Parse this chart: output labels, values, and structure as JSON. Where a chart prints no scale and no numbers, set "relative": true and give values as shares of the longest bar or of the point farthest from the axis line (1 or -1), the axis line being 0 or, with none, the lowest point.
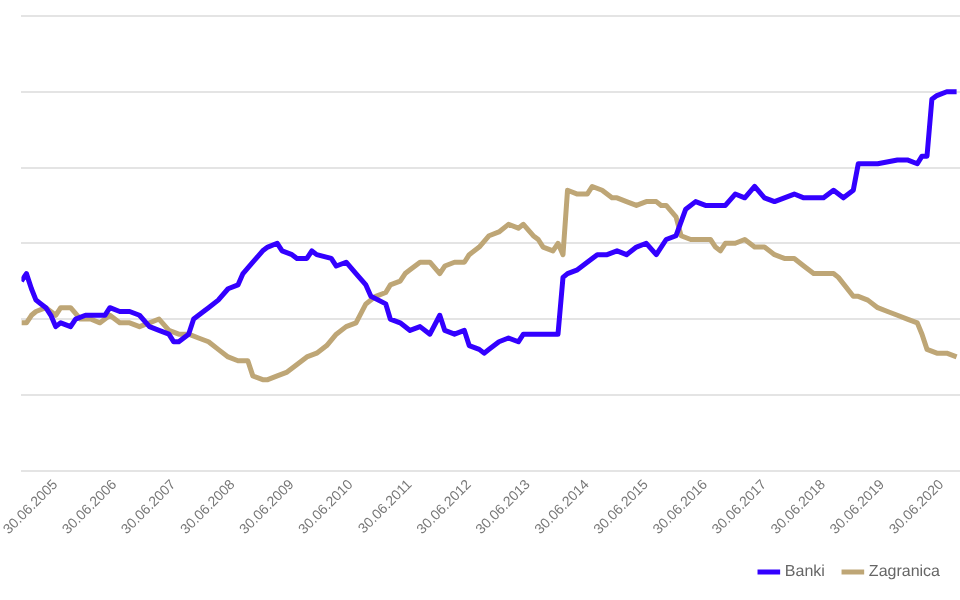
{
  "chart_data": {
    "type": "line",
    "relative": true,
    "grid": "y",
    "legend": "bottom",
    "marker": "none",
    "line_style": "solid",
    "xlim": [
      "2004-12-01",
      "2020-10-22"
    ],
    "xticks": [
      {
        "value": "2005-06-30",
        "label": "30.06.2005"
      },
      {
        "value": "2006-06-30",
        "label": "30.06.2006"
      },
      {
        "value": "2007-06-30",
        "label": "30.06.2007"
      },
      {
        "value": "2008-06-30",
        "label": "30.06.2008"
      },
      {
        "value": "2009-06-30",
        "label": "30.06.2009"
      },
      {
        "value": "2010-06-30",
        "label": "30.06.2010"
      },
      {
        "value": "2011-06-30",
        "label": "30.06.2011"
      },
      {
        "value": "2012-06-30",
        "label": "30.06.2012"
      },
      {
        "value": "2013-06-30",
        "label": "30.06.2013"
      },
      {
        "value": "2014-06-30",
        "label": "30.06.2014"
      },
      {
        "value": "2015-06-30",
        "label": "30.06.2015"
      },
      {
        "value": "2016-06-30",
        "label": "30.06.2016"
      },
      {
        "value": "2017-06-30",
        "label": "30.06.2017"
      },
      {
        "value": "2018-06-30",
        "label": "30.06.2018"
      },
      {
        "value": "2019-06-30",
        "label": "30.06.2019"
      },
      {
        "value": "2020-06-30",
        "label": "30.06.2020"
      }
    ],
    "series": [
      {
        "name": "Banki",
        "color": "#3300ff",
        "x": [
          "2004-12",
          "2005-01",
          "2005-02",
          "2005-03",
          "2005-04",
          "2005-05",
          "2005-06",
          "2005-07",
          "2005-08",
          "2005-10",
          "2005-11",
          "2006-01",
          "2006-03",
          "2006-05",
          "2006-06",
          "2006-08",
          "2006-10",
          "2006-12",
          "2007-02",
          "2007-04",
          "2007-06",
          "2007-07",
          "2007-08",
          "2007-10",
          "2007-11",
          "2008-01",
          "2008-02",
          "2008-04",
          "2008-06",
          "2008-08",
          "2008-09",
          "2008-11",
          "2009-01",
          "2009-02",
          "2009-04",
          "2009-05",
          "2009-07",
          "2009-08",
          "2009-10",
          "2009-11",
          "2009-12",
          "2010-03",
          "2010-04",
          "2010-06",
          "2010-08",
          "2010-10",
          "2010-11",
          "2011-02",
          "2011-03",
          "2011-05",
          "2011-07",
          "2011-09",
          "2011-11",
          "2012-01",
          "2012-02",
          "2012-04",
          "2012-06",
          "2012-07",
          "2012-09",
          "2012-10",
          "2012-11",
          "2013-01",
          "2013-03",
          "2013-05",
          "2013-06",
          "2013-08",
          "2013-09",
          "2014-01",
          "2014-02",
          "2014-03",
          "2014-05",
          "2014-07",
          "2014-09",
          "2014-11",
          "2015-01",
          "2015-03",
          "2015-05",
          "2015-07",
          "2015-09",
          "2015-11",
          "2016-01",
          "2016-03",
          "2016-05",
          "2016-07",
          "2016-09",
          "2016-11",
          "2017-01",
          "2017-03",
          "2017-05",
          "2017-07",
          "2017-09",
          "2017-11",
          "2018-01",
          "2018-03",
          "2018-07",
          "2018-09",
          "2018-11",
          "2019-01",
          "2019-02",
          "2019-05",
          "2019-06",
          "2019-10",
          "2019-12",
          "2020-02",
          "2020-03",
          "2020-04",
          "2020-05",
          "2020-06",
          "2020-08",
          "2020-10"
        ],
        "values": [
          0.5,
          0.52,
          0.48,
          0.45,
          0.44,
          0.43,
          0.41,
          0.38,
          0.39,
          0.38,
          0.4,
          0.41,
          0.41,
          0.41,
          0.43,
          0.42,
          0.42,
          0.41,
          0.38,
          0.37,
          0.36,
          0.34,
          0.34,
          0.36,
          0.4,
          0.42,
          0.43,
          0.45,
          0.48,
          0.49,
          0.52,
          0.55,
          0.58,
          0.59,
          0.6,
          0.58,
          0.57,
          0.56,
          0.56,
          0.58,
          0.57,
          0.56,
          0.54,
          0.55,
          0.52,
          0.49,
          0.46,
          0.44,
          0.4,
          0.39,
          0.37,
          0.38,
          0.36,
          0.41,
          0.37,
          0.36,
          0.37,
          0.33,
          0.32,
          0.31,
          0.32,
          0.34,
          0.35,
          0.34,
          0.36,
          0.36,
          0.36,
          0.36,
          0.51,
          0.52,
          0.53,
          0.55,
          0.57,
          0.57,
          0.58,
          0.57,
          0.59,
          0.6,
          0.57,
          0.61,
          0.62,
          0.69,
          0.71,
          0.7,
          0.7,
          0.7,
          0.73,
          0.72,
          0.75,
          0.72,
          0.71,
          0.72,
          0.73,
          0.72,
          0.72,
          0.74,
          0.72,
          0.74,
          0.81,
          0.81,
          0.81,
          0.82,
          0.82,
          0.81,
          0.83,
          0.83,
          0.98,
          0.99,
          1,
          1
        ]
      },
      {
        "name": "Zagranica",
        "color": "#bea676",
        "x": [
          "2004-12",
          "2005-01",
          "2005-02",
          "2005-03",
          "2005-05",
          "2005-06",
          "2005-07",
          "2005-08",
          "2005-10",
          "2005-12",
          "2006-02",
          "2006-04",
          "2006-06",
          "2006-08",
          "2006-10",
          "2006-12",
          "2007-02",
          "2007-04",
          "2007-06",
          "2007-08",
          "2007-10",
          "2007-12",
          "2008-02",
          "2008-04",
          "2008-06",
          "2008-08",
          "2008-10",
          "2008-11",
          "2009-01",
          "2009-02",
          "2009-04",
          "2009-06",
          "2009-08",
          "2009-10",
          "2009-12",
          "2010-02",
          "2010-04",
          "2010-06",
          "2010-08",
          "2010-10",
          "2010-11",
          "2010-12",
          "2011-02",
          "2011-03",
          "2011-05",
          "2011-06",
          "2011-07",
          "2011-09",
          "2011-11",
          "2012-01",
          "2012-02",
          "2012-04",
          "2012-06",
          "2012-07",
          "2012-09",
          "2012-11",
          "2013-01",
          "2013-03",
          "2013-05",
          "2013-06",
          "2013-08",
          "2013-09",
          "2013-10",
          "2013-12",
          "2014-01",
          "2014-02",
          "2014-03",
          "2014-05",
          "2014-07",
          "2014-08",
          "2014-10",
          "2014-12",
          "2015-01",
          "2015-03",
          "2015-05",
          "2015-07",
          "2015-09",
          "2015-10",
          "2015-11",
          "2016-01",
          "2016-02",
          "2016-04",
          "2016-06",
          "2016-08",
          "2016-09",
          "2016-10",
          "2016-11",
          "2017-01",
          "2017-03",
          "2017-05",
          "2017-07",
          "2017-09",
          "2017-11",
          "2018-01",
          "2018-03",
          "2018-05",
          "2018-07",
          "2018-09",
          "2018-10",
          "2019-01",
          "2019-02",
          "2019-04",
          "2019-06",
          "2019-08",
          "2019-10",
          "2019-12",
          "2020-02",
          "2020-03",
          "2020-04",
          "2020-06",
          "2020-08",
          "2020-10"
        ],
        "values": [
          0.39,
          0.39,
          0.41,
          0.42,
          0.43,
          0.42,
          0.41,
          0.43,
          0.43,
          0.4,
          0.4,
          0.39,
          0.41,
          0.39,
          0.39,
          0.38,
          0.39,
          0.4,
          0.37,
          0.36,
          0.36,
          0.35,
          0.34,
          0.32,
          0.3,
          0.29,
          0.29,
          0.25,
          0.24,
          0.24,
          0.25,
          0.26,
          0.28,
          0.3,
          0.31,
          0.33,
          0.36,
          0.38,
          0.39,
          0.44,
          0.45,
          0.46,
          0.47,
          0.49,
          0.5,
          0.52,
          0.53,
          0.55,
          0.55,
          0.52,
          0.54,
          0.55,
          0.55,
          0.57,
          0.59,
          0.62,
          0.63,
          0.65,
          0.64,
          0.65,
          0.62,
          0.61,
          0.59,
          0.58,
          0.6,
          0.57,
          0.74,
          0.73,
          0.73,
          0.75,
          0.74,
          0.72,
          0.72,
          0.71,
          0.7,
          0.71,
          0.71,
          0.7,
          0.7,
          0.67,
          0.62,
          0.61,
          0.61,
          0.61,
          0.59,
          0.58,
          0.6,
          0.6,
          0.61,
          0.59,
          0.59,
          0.57,
          0.56,
          0.56,
          0.54,
          0.52,
          0.52,
          0.52,
          0.51,
          0.46,
          0.46,
          0.45,
          0.43,
          0.42,
          0.41,
          0.4,
          0.39,
          0.36,
          0.32,
          0.31,
          0.31,
          0.3
        ]
      }
    ]
  }
}
